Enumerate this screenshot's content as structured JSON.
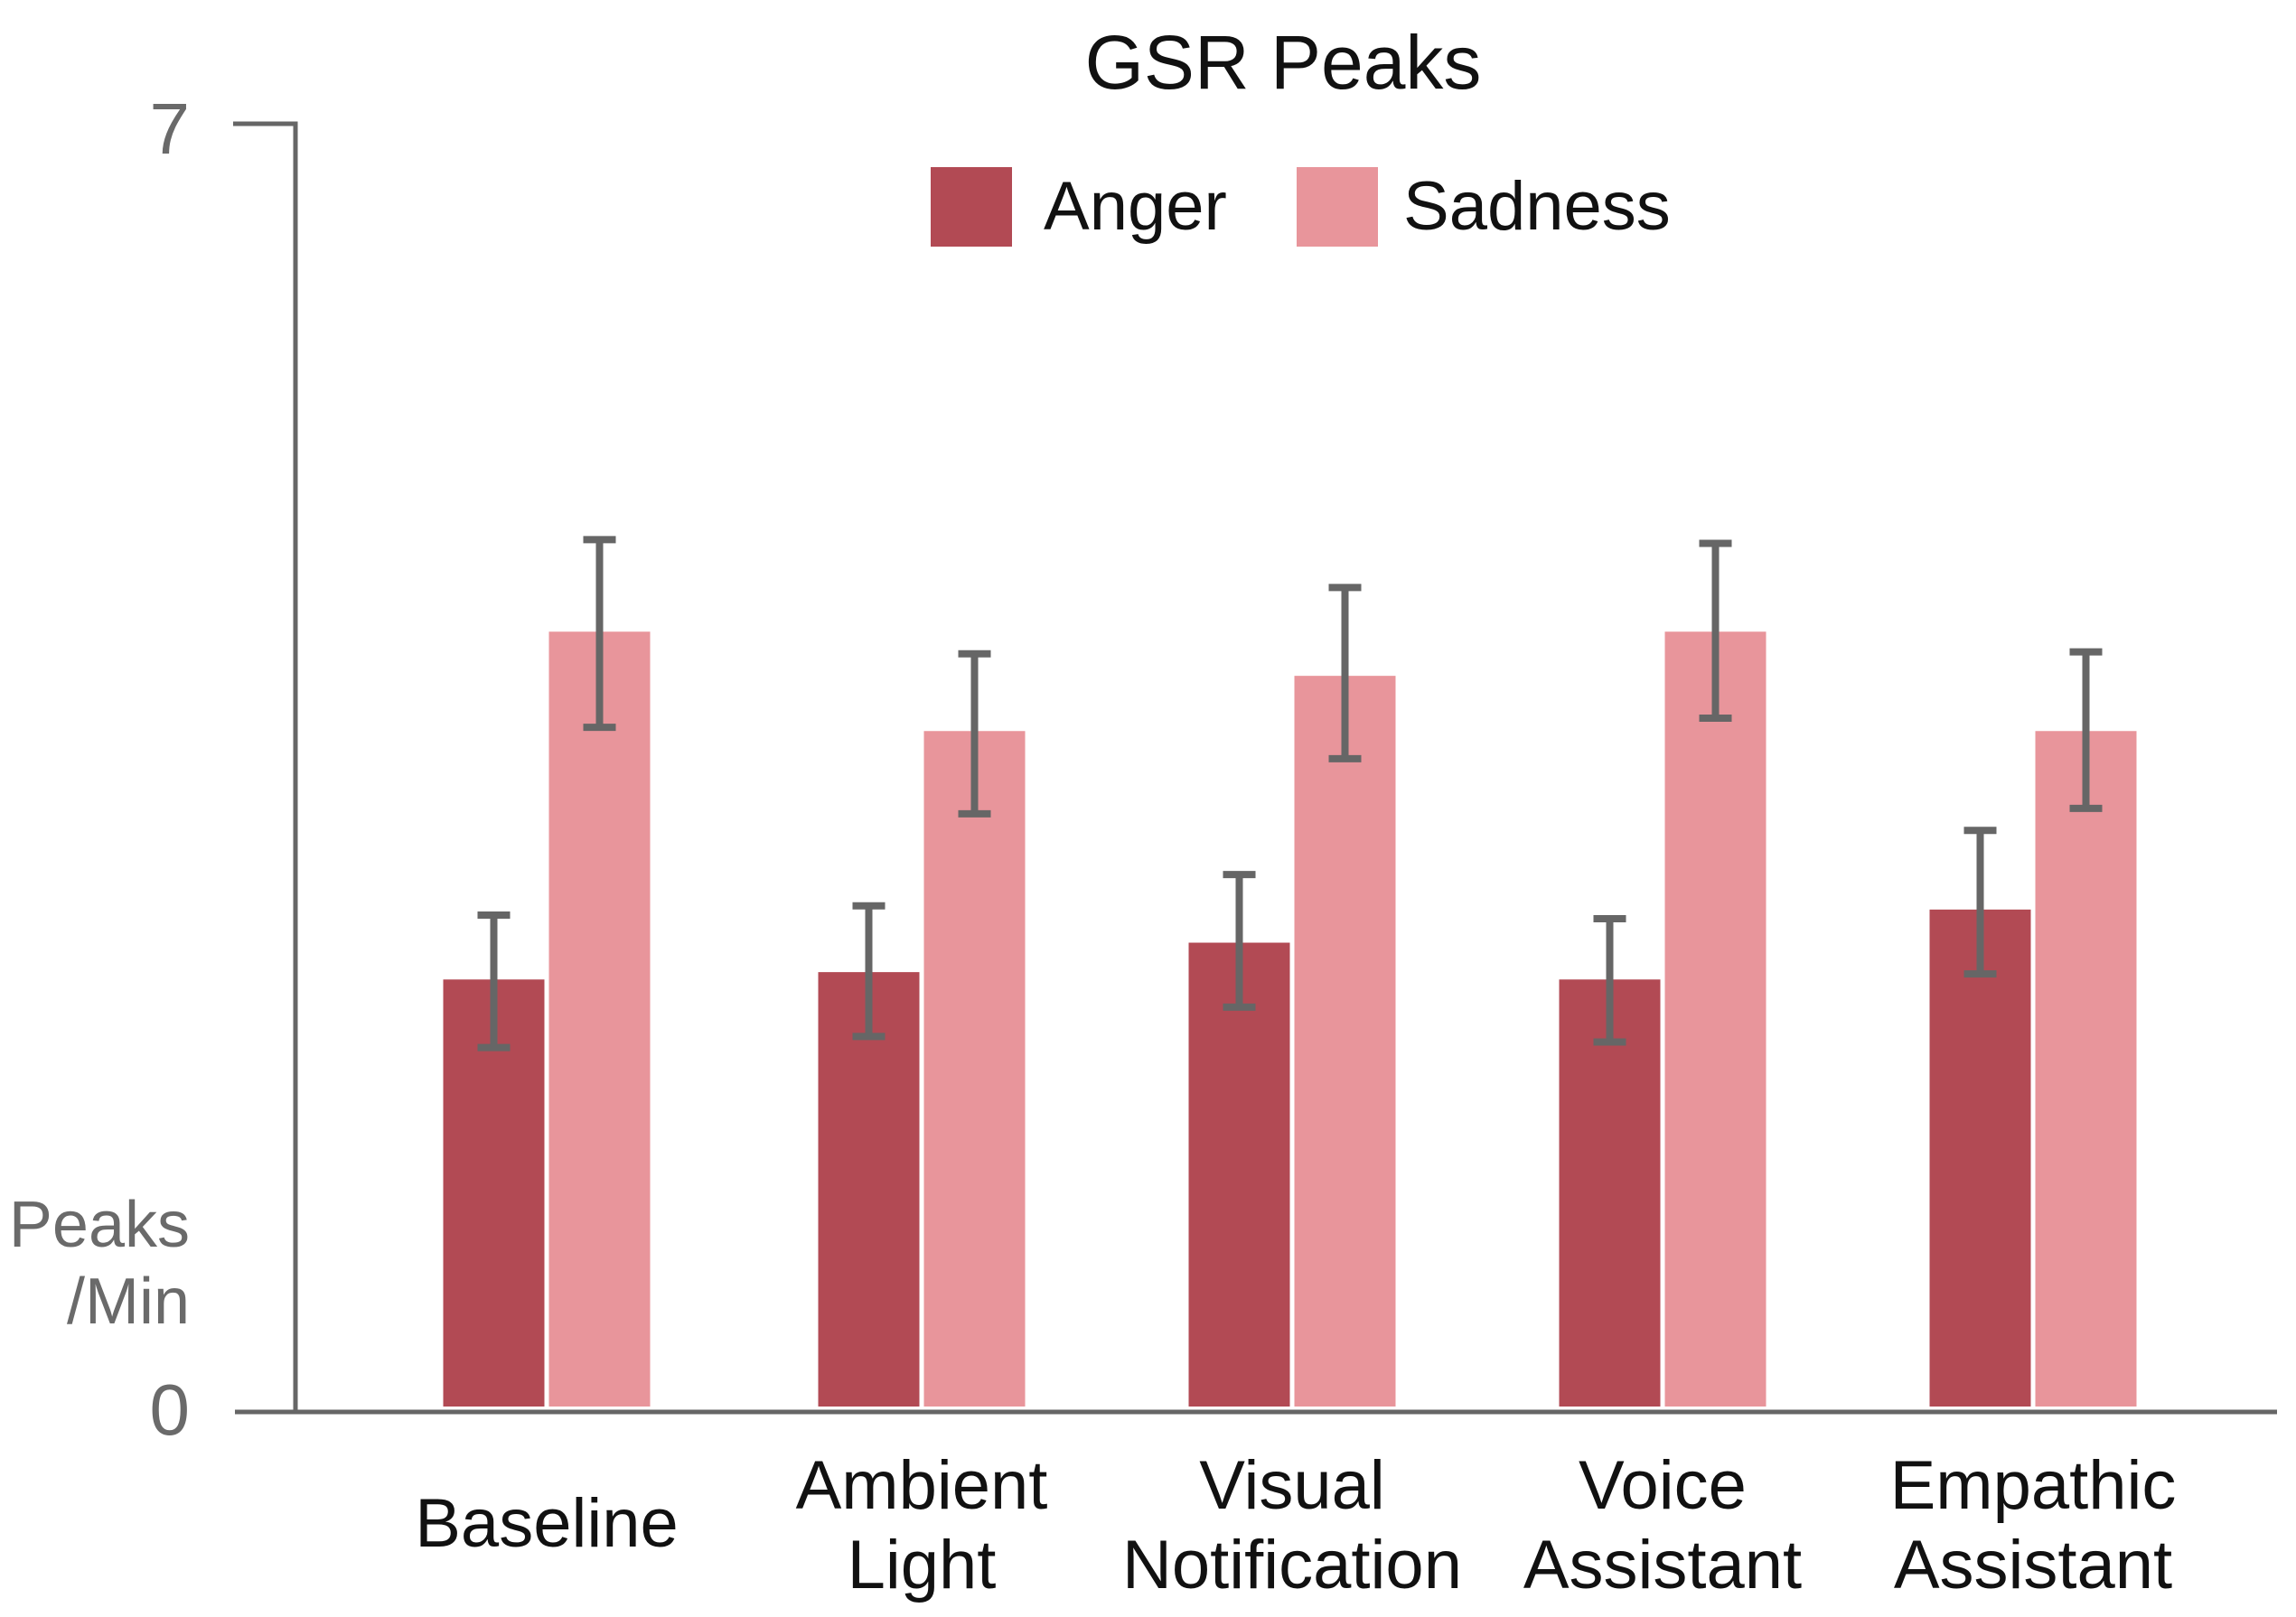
{
  "chart_data": {
    "type": "bar",
    "title": "GSR Peaks",
    "ylabel_lines": [
      "Peaks",
      "/Min"
    ],
    "xlabel": "",
    "ylim": [
      0,
      7
    ],
    "yticks": [
      "0",
      "7"
    ],
    "categories": [
      [
        "Baseline"
      ],
      [
        "Ambient",
        "Light"
      ],
      [
        "Visual",
        "Notification"
      ],
      [
        "Voice",
        "Assistant"
      ],
      [
        "Empathic",
        "Assistant"
      ]
    ],
    "series": [
      {
        "name": "Anger",
        "color": "#b24a54",
        "values": [
          2.35,
          2.39,
          2.55,
          2.35,
          2.73
        ],
        "error_low": [
          1.98,
          2.04,
          2.2,
          2.01,
          2.38
        ],
        "error_high": [
          2.7,
          2.75,
          2.92,
          2.68,
          3.16
        ]
      },
      {
        "name": "Sadness",
        "color": "#e8959b",
        "values": [
          4.24,
          3.7,
          4.0,
          4.24,
          3.7
        ],
        "error_low": [
          3.72,
          3.25,
          3.55,
          3.77,
          3.28
        ],
        "error_high": [
          4.74,
          4.12,
          4.48,
          4.72,
          4.13
        ]
      }
    ]
  }
}
